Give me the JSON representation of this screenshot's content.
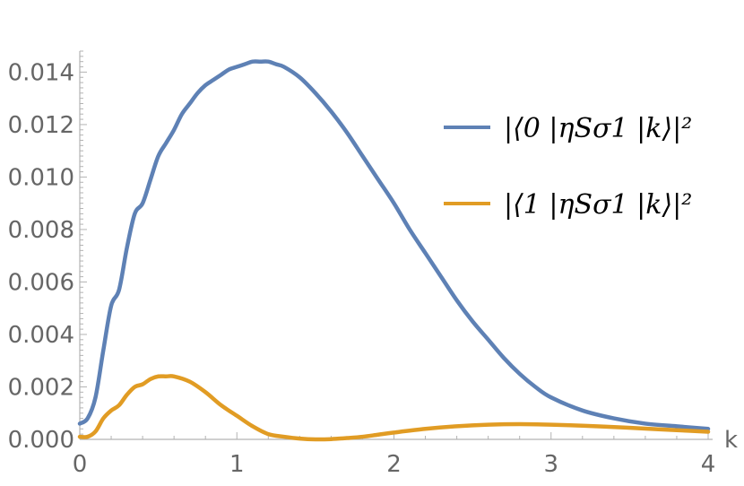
{
  "chart_data": {
    "type": "line",
    "title": "",
    "xlabel": "k",
    "ylabel": "",
    "xlim": [
      0,
      4
    ],
    "ylim": [
      0,
      0.0148
    ],
    "grid": false,
    "legend_position": "right",
    "x_ticks": [
      "0",
      "1",
      "2",
      "3",
      "4"
    ],
    "y_ticks": [
      "0.000",
      "0.002",
      "0.004",
      "0.006",
      "0.008",
      "0.010",
      "0.012",
      "0.014"
    ],
    "series": [
      {
        "name": "|⟨0 |ηSσ1 |k⟩|²",
        "color": "#5E81B5",
        "x": [
          0,
          0.05,
          0.1,
          0.15,
          0.2,
          0.25,
          0.3,
          0.35,
          0.4,
          0.45,
          0.5,
          0.55,
          0.6,
          0.65,
          0.7,
          0.75,
          0.8,
          0.85,
          0.9,
          0.95,
          1.0,
          1.05,
          1.1,
          1.15,
          1.2,
          1.25,
          1.3,
          1.4,
          1.5,
          1.6,
          1.7,
          1.8,
          1.9,
          2.0,
          2.1,
          2.2,
          2.3,
          2.4,
          2.5,
          2.6,
          2.7,
          2.8,
          2.9,
          3.0,
          3.2,
          3.4,
          3.6,
          3.8,
          4.0
        ],
        "y": [
          0.0006,
          0.0008,
          0.0016,
          0.0034,
          0.0051,
          0.0057,
          0.0073,
          0.0086,
          0.009,
          0.0099,
          0.0108,
          0.0113,
          0.0118,
          0.0124,
          0.0128,
          0.0132,
          0.0135,
          0.0137,
          0.0139,
          0.0141,
          0.0142,
          0.0143,
          0.0144,
          0.0144,
          0.0144,
          0.0143,
          0.0142,
          0.0138,
          0.0132,
          0.0125,
          0.0117,
          0.0108,
          0.0099,
          0.009,
          0.008,
          0.0071,
          0.0062,
          0.0053,
          0.0045,
          0.0038,
          0.0031,
          0.0025,
          0.002,
          0.0016,
          0.0011,
          0.0008,
          0.0006,
          0.0005,
          0.0004
        ]
      },
      {
        "name": "|⟨1 |ηSσ1 |k⟩|²",
        "color": "#E19C24",
        "x": [
          0,
          0.05,
          0.1,
          0.15,
          0.2,
          0.25,
          0.3,
          0.35,
          0.4,
          0.45,
          0.5,
          0.55,
          0.6,
          0.7,
          0.8,
          0.9,
          1.0,
          1.1,
          1.2,
          1.3,
          1.4,
          1.5,
          1.6,
          1.7,
          1.8,
          1.9,
          2.0,
          2.2,
          2.4,
          2.6,
          2.8,
          3.0,
          3.2,
          3.4,
          3.6,
          3.8,
          4.0
        ],
        "y": [
          0.0001,
          0.0001,
          0.0003,
          0.0008,
          0.0011,
          0.0013,
          0.0017,
          0.002,
          0.0021,
          0.0023,
          0.0024,
          0.0024,
          0.0024,
          0.0022,
          0.0018,
          0.0013,
          0.0009,
          0.0005,
          0.0002,
          0.0001,
          3e-05,
          0.0,
          1e-05,
          5e-05,
          0.0001,
          0.00018,
          0.00026,
          0.0004,
          0.0005,
          0.00056,
          0.00058,
          0.00056,
          0.00052,
          0.00047,
          0.00041,
          0.00035,
          0.00029
        ]
      }
    ]
  }
}
